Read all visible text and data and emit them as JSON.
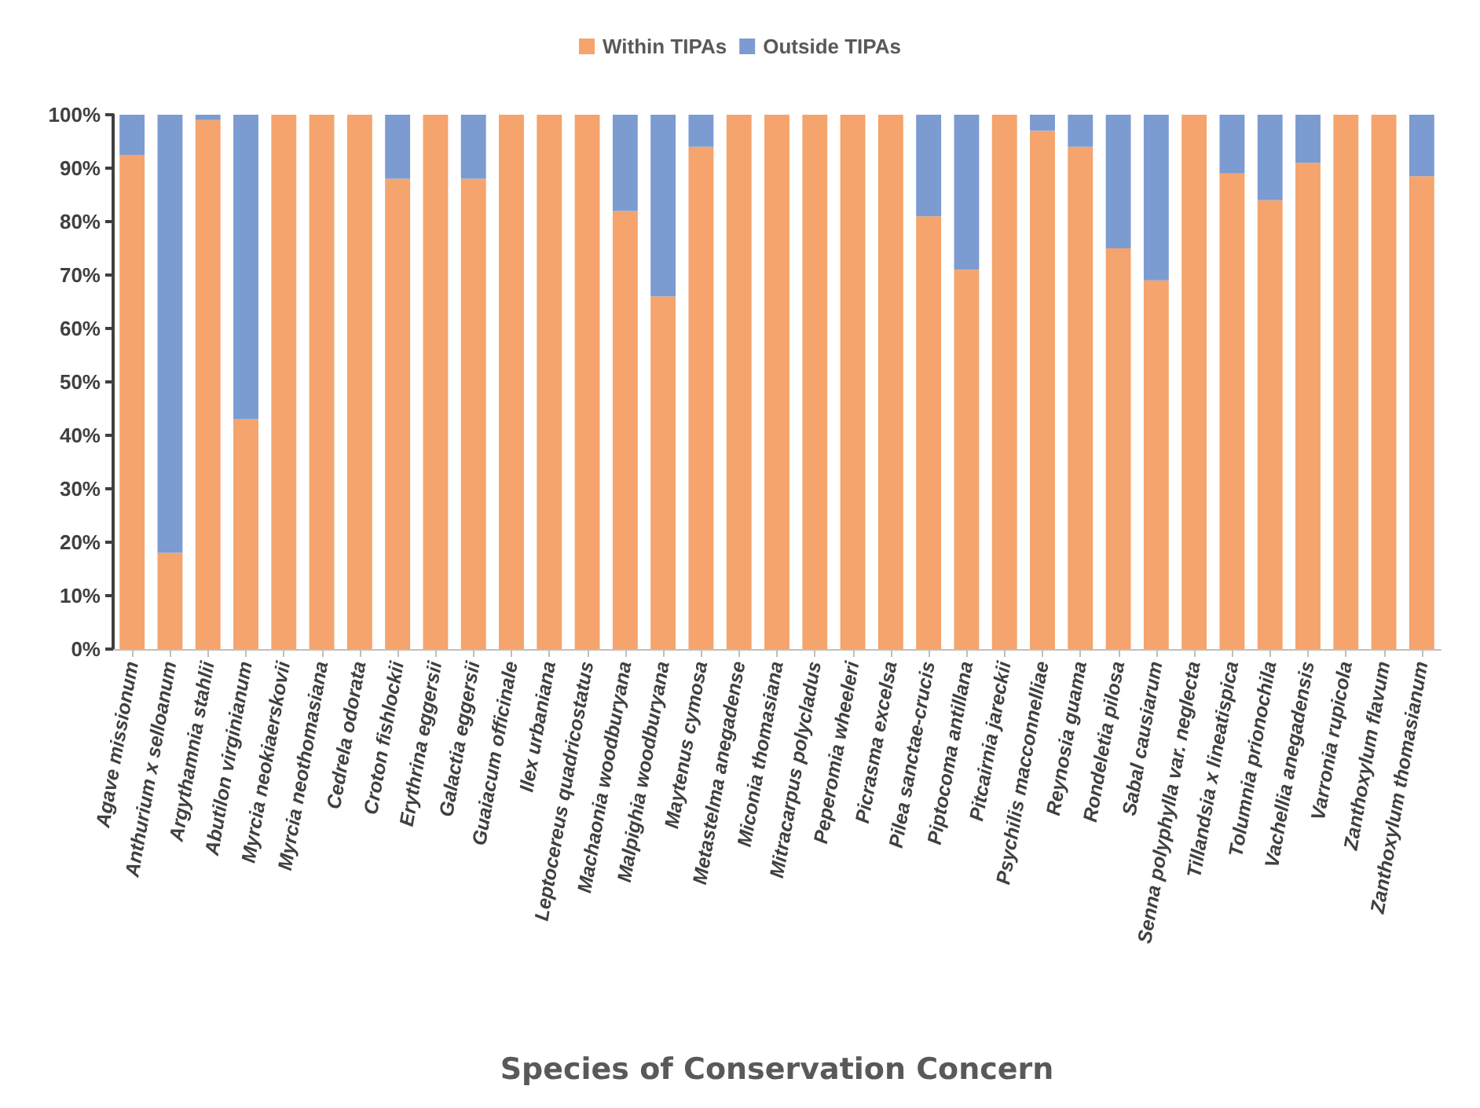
{
  "chart_data": {
    "type": "bar",
    "stacked": true,
    "xlabel": "Species of Conservation Concern",
    "categories": [
      "Agave missionum",
      "Anthurium x selloanum",
      "Argythamnia stahlii",
      "Abutilon virginianum",
      "Myrcia neokiaerskovii",
      "Myrcia neothomasiana",
      "Cedrela odorata",
      "Croton fishlockii",
      "Erythrina eggersii",
      "Galactia eggersii",
      "Guaiacum officinale",
      "Ilex urbaniana",
      "Leptocereus quadricostatus",
      "Machaonia woodburyana",
      "Malpighia woodburyana",
      "Maytenus cymosa",
      "Metastelma anegadense",
      "Miconia thomasiana",
      "Mitracarpus polycladus",
      "Peperomia wheeleri",
      "Picrasma excelsa",
      "Pilea sanctae-crucis",
      "Piptocoma antillana",
      "Pitcairnia jareckii",
      "Psychilis macconnelliae",
      "Reynosia guama",
      "Rondeletia pilosa",
      "Sabal causiarum",
      "Senna polyphylla var. neglecta",
      "Tillandsia x lineatispica",
      "Tolumnia prionochila",
      "Vachellia anegadensis",
      "Varronia rupicola",
      "Zanthoxylum flavum",
      "Zanthoxylum thomasianum"
    ],
    "series": [
      {
        "name": "Within TIPAs",
        "color": "#f4a46c",
        "values": [
          92.5,
          18,
          99,
          43,
          100,
          100,
          100,
          88,
          100,
          88,
          100,
          100,
          100,
          82,
          66,
          94,
          100,
          100,
          100,
          100,
          100,
          81,
          71,
          100,
          97,
          94,
          75,
          69,
          100,
          89,
          84,
          91,
          100,
          100,
          88.5
        ]
      },
      {
        "name": "Outside TIPAs",
        "color": "#7b9bd1",
        "values": [
          7.5,
          82,
          1,
          57,
          0,
          0,
          0,
          12,
          0,
          12,
          0,
          0,
          0,
          18,
          34,
          6,
          0,
          0,
          0,
          0,
          0,
          19,
          29,
          0,
          3,
          6,
          25,
          31,
          0,
          11,
          16,
          9,
          0,
          0,
          11.5
        ]
      }
    ],
    "ylim": [
      0,
      100
    ],
    "yticks": [
      {
        "value": 0,
        "label": "0%"
      },
      {
        "value": 10,
        "label": "10%"
      },
      {
        "value": 20,
        "label": "20%"
      },
      {
        "value": 30,
        "label": "30%"
      },
      {
        "value": 40,
        "label": "40%"
      },
      {
        "value": 50,
        "label": "50%"
      },
      {
        "value": 60,
        "label": "60%"
      },
      {
        "value": 70,
        "label": "70%"
      },
      {
        "value": 80,
        "label": "80%"
      },
      {
        "value": 90,
        "label": "90%"
      },
      {
        "value": 100,
        "label": "100%"
      }
    ],
    "grid": false,
    "legend": "top"
  }
}
